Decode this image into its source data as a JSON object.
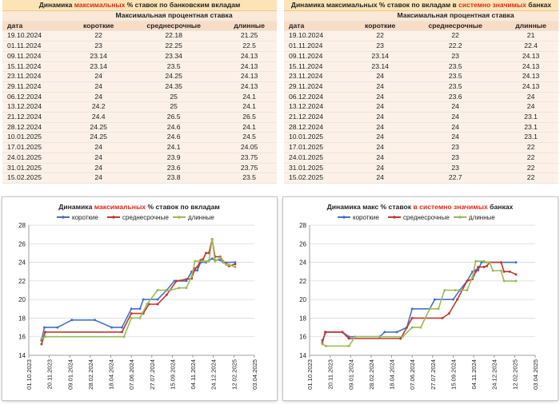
{
  "table_left": {
    "title_prefix": "Динамика ",
    "title_highlight": "максимальных",
    "title_suffix": " % ставок по банковским вкладам",
    "subheader": "Максимальная процентная ставка",
    "columns": [
      "дата",
      "короткие",
      "среднесрочные",
      "длинные"
    ],
    "rows": [
      [
        "19.10.2024",
        "22",
        "22.18",
        "21.25"
      ],
      [
        "01.11.2024",
        "23",
        "22.25",
        "22.5"
      ],
      [
        "09.11.2024",
        "23.14",
        "23.34",
        "24.13"
      ],
      [
        "15.11.2024",
        "23.14",
        "23.5",
        "24.13"
      ],
      [
        "23.11.2024",
        "24",
        "24.25",
        "24.13"
      ],
      [
        "29.11.2024",
        "24",
        "24.35",
        "24.13"
      ],
      [
        "06.12.2024",
        "24",
        "25",
        "24.1"
      ],
      [
        "13.12.2024",
        "24.2",
        "25",
        "24.1"
      ],
      [
        "21.12.2024",
        "24.4",
        "26.5",
        "26.5"
      ],
      [
        "28.12.2024",
        "24.25",
        "24.6",
        "24.1"
      ],
      [
        "10.01.2025",
        "24.25",
        "24.6",
        "24.5"
      ],
      [
        "17.01.2025",
        "24",
        "24.1",
        "24.05"
      ],
      [
        "24.01.2025",
        "24",
        "23.9",
        "23.75"
      ],
      [
        "31.01.2025",
        "24",
        "23.6",
        "23.75"
      ],
      [
        "15.02.2025",
        "24",
        "23.8",
        "23.5"
      ]
    ]
  },
  "table_right": {
    "title_prefix": "Динамика ",
    "title_highlight1": "максимальных",
    "title_middle": " % ставок по вкладам в ",
    "title_highlight2": "системно значимых",
    "title_suffix": " банках",
    "subheader": "Максимальная процентная ставка",
    "columns": [
      "дата",
      "короткие",
      "среднесрочные",
      "длинные"
    ],
    "rows": [
      [
        "19.10.2024",
        "22",
        "22",
        "21"
      ],
      [
        "01.11.2024",
        "23",
        "22.2",
        "22.4"
      ],
      [
        "09.11.2024",
        "23.14",
        "23",
        "24.13"
      ],
      [
        "15.11.2024",
        "23.14",
        "23.5",
        "24.13"
      ],
      [
        "23.11.2024",
        "24",
        "23.5",
        "24.13"
      ],
      [
        "29.11.2024",
        "24",
        "23.5",
        "24.13"
      ],
      [
        "06.12.2024",
        "24",
        "23.6",
        "24"
      ],
      [
        "13.12.2024",
        "24",
        "24",
        "24"
      ],
      [
        "21.12.2024",
        "24",
        "24",
        "23.1"
      ],
      [
        "28.12.2024",
        "24",
        "24",
        "23.1"
      ],
      [
        "10.01.2025",
        "24",
        "24",
        "23.1"
      ],
      [
        "17.01.2025",
        "24",
        "23",
        "22"
      ],
      [
        "24.01.2025",
        "24",
        "23",
        "22"
      ],
      [
        "31.01.2025",
        "24",
        "23",
        "22"
      ],
      [
        "15.02.2025",
        "24",
        "22.7",
        "22"
      ]
    ]
  },
  "chart_data": [
    {
      "type": "line",
      "title_prefix": "Динамика ",
      "title_highlight": "максимальных",
      "title_suffix": " % ставок по вкладам",
      "legend": [
        "короткие",
        "среднесрочные",
        "длинные"
      ],
      "colors": [
        "#4472c4",
        "#c0392b",
        "#9bbb59"
      ],
      "ylim": [
        14,
        28
      ],
      "yticks": [
        "14",
        "16",
        "18",
        "20",
        "22",
        "24",
        "26",
        "28"
      ],
      "xlim": [
        "2023-10-01",
        "2025-04-03"
      ],
      "xticks": [
        "01.10.2023",
        "20.11.2023",
        "09.01.2024",
        "28.02.2024",
        "18.04.2024",
        "07.06.2024",
        "27.07.2024",
        "15.09.2024",
        "04.11.2024",
        "24.12.2024",
        "12.02.2025",
        "03.04.2025"
      ],
      "series": [
        {
          "name": "короткие",
          "points": [
            [
              "2023-11-01",
              15.6
            ],
            [
              "2023-11-08",
              17
            ],
            [
              "2023-12-10",
              17
            ],
            [
              "2024-01-14",
              17.8
            ],
            [
              "2024-03-10",
              17.8
            ],
            [
              "2024-04-20",
              17
            ],
            [
              "2024-05-15",
              17
            ],
            [
              "2024-06-07",
              19
            ],
            [
              "2024-06-28",
              19
            ],
            [
              "2024-07-06",
              20
            ],
            [
              "2024-08-10",
              20
            ],
            [
              "2024-09-01",
              21
            ],
            [
              "2024-09-20",
              22
            ],
            [
              "2024-10-19",
              22
            ],
            [
              "2024-11-01",
              23
            ],
            [
              "2024-11-09",
              23.14
            ],
            [
              "2024-11-15",
              23.14
            ],
            [
              "2024-11-23",
              24
            ],
            [
              "2024-12-06",
              24
            ],
            [
              "2024-12-13",
              24.2
            ],
            [
              "2024-12-21",
              24.4
            ],
            [
              "2024-12-28",
              24.25
            ],
            [
              "2025-01-10",
              24.25
            ],
            [
              "2025-01-17",
              24
            ],
            [
              "2025-02-15",
              24
            ]
          ]
        },
        {
          "name": "среднесрочные",
          "points": [
            [
              "2023-11-01",
              15.2
            ],
            [
              "2023-11-10",
              16.5
            ],
            [
              "2024-05-15",
              16.5
            ],
            [
              "2024-06-07",
              18.5
            ],
            [
              "2024-07-06",
              18.5
            ],
            [
              "2024-07-20",
              19.5
            ],
            [
              "2024-08-10",
              19.5
            ],
            [
              "2024-09-01",
              20.5
            ],
            [
              "2024-09-25",
              22
            ],
            [
              "2024-10-19",
              22.18
            ],
            [
              "2024-11-01",
              22.25
            ],
            [
              "2024-11-09",
              23.34
            ],
            [
              "2024-11-15",
              23.5
            ],
            [
              "2024-11-23",
              24.25
            ],
            [
              "2024-11-29",
              24.35
            ],
            [
              "2024-12-06",
              25
            ],
            [
              "2024-12-13",
              25
            ],
            [
              "2024-12-21",
              26.5
            ],
            [
              "2024-12-28",
              24.6
            ],
            [
              "2025-01-10",
              24.6
            ],
            [
              "2025-01-17",
              24.1
            ],
            [
              "2025-01-24",
              23.9
            ],
            [
              "2025-01-31",
              23.6
            ],
            [
              "2025-02-15",
              23.8
            ]
          ]
        },
        {
          "name": "длинные",
          "points": [
            [
              "2023-11-01",
              15.8
            ],
            [
              "2023-11-10",
              16
            ],
            [
              "2024-05-20",
              16
            ],
            [
              "2024-06-07",
              18
            ],
            [
              "2024-06-28",
              18
            ],
            [
              "2024-07-15",
              19.5
            ],
            [
              "2024-08-10",
              21
            ],
            [
              "2024-09-10",
              21
            ],
            [
              "2024-10-01",
              21.25
            ],
            [
              "2024-10-19",
              21.25
            ],
            [
              "2024-11-01",
              22.5
            ],
            [
              "2024-11-09",
              24.13
            ],
            [
              "2024-11-29",
              24.13
            ],
            [
              "2024-12-06",
              24.1
            ],
            [
              "2024-12-13",
              24.1
            ],
            [
              "2024-12-21",
              26.5
            ],
            [
              "2024-12-28",
              24.1
            ],
            [
              "2025-01-10",
              24.5
            ],
            [
              "2025-01-17",
              24.05
            ],
            [
              "2025-01-24",
              23.75
            ],
            [
              "2025-01-31",
              23.75
            ],
            [
              "2025-02-15",
              23.5
            ]
          ]
        }
      ]
    },
    {
      "type": "line",
      "title_prefix": "Динамика макс % ставок ",
      "title_highlight": "в системно значимых",
      "title_suffix": " банках",
      "legend": [
        "короткие",
        "среднесрочные",
        "длинные"
      ],
      "colors": [
        "#4472c4",
        "#c0392b",
        "#9bbb59"
      ],
      "ylim": [
        14,
        28
      ],
      "yticks": [
        "14",
        "16",
        "18",
        "20",
        "22",
        "24",
        "26",
        "28"
      ],
      "xlim": [
        "2023-10-01",
        "2025-04-03"
      ],
      "xticks": [
        "01.10.2023",
        "20.11.2023",
        "09.01.2024",
        "28.02.2024",
        "18.04.2024",
        "07.06.2024",
        "27.07.2024",
        "15.09.2024",
        "04.11.2024",
        "24.12.2024",
        "12.02.2025",
        "03.04.2025"
      ],
      "series": [
        {
          "name": "короткие",
          "points": [
            [
              "2023-11-01",
              15.6
            ],
            [
              "2023-11-10",
              16.5
            ],
            [
              "2023-12-20",
              16.5
            ],
            [
              "2024-01-05",
              16
            ],
            [
              "2024-03-20",
              16
            ],
            [
              "2024-04-01",
              16.5
            ],
            [
              "2024-05-01",
              16.5
            ],
            [
              "2024-05-25",
              17
            ],
            [
              "2024-06-07",
              19
            ],
            [
              "2024-07-20",
              19
            ],
            [
              "2024-08-01",
              20
            ],
            [
              "2024-09-15",
              20
            ],
            [
              "2024-10-01",
              21
            ],
            [
              "2024-10-19",
              22
            ],
            [
              "2024-11-01",
              23
            ],
            [
              "2024-11-09",
              23.14
            ],
            [
              "2024-11-15",
              23.14
            ],
            [
              "2024-11-23",
              24
            ],
            [
              "2025-02-15",
              24
            ]
          ]
        },
        {
          "name": "среднесрочные",
          "points": [
            [
              "2023-11-01",
              15.3
            ],
            [
              "2023-11-08",
              16.5
            ],
            [
              "2023-12-20",
              16.5
            ],
            [
              "2024-01-05",
              15.8
            ],
            [
              "2024-05-10",
              15.8
            ],
            [
              "2024-06-07",
              18
            ],
            [
              "2024-08-20",
              18
            ],
            [
              "2024-09-05",
              18.5
            ],
            [
              "2024-09-25",
              20
            ],
            [
              "2024-10-19",
              22
            ],
            [
              "2024-11-01",
              22.2
            ],
            [
              "2024-11-09",
              23
            ],
            [
              "2024-11-15",
              23.5
            ],
            [
              "2024-11-29",
              23.5
            ],
            [
              "2024-12-06",
              23.6
            ],
            [
              "2024-12-13",
              24
            ],
            [
              "2025-01-10",
              24
            ],
            [
              "2025-01-17",
              23
            ],
            [
              "2025-01-31",
              23
            ],
            [
              "2025-02-15",
              22.7
            ]
          ]
        },
        {
          "name": "длинные",
          "points": [
            [
              "2023-11-01",
              15.2
            ],
            [
              "2023-11-10",
              15
            ],
            [
              "2024-01-05",
              15
            ],
            [
              "2024-01-20",
              16
            ],
            [
              "2024-05-15",
              16
            ],
            [
              "2024-06-07",
              17
            ],
            [
              "2024-06-28",
              17
            ],
            [
              "2024-07-20",
              19
            ],
            [
              "2024-08-10",
              19
            ],
            [
              "2024-08-25",
              21
            ],
            [
              "2024-09-20",
              21
            ],
            [
              "2024-10-19",
              21
            ],
            [
              "2024-11-01",
              22.4
            ],
            [
              "2024-11-09",
              24.13
            ],
            [
              "2024-11-29",
              24.13
            ],
            [
              "2024-12-06",
              24
            ],
            [
              "2024-12-13",
              24
            ],
            [
              "2024-12-21",
              23.1
            ],
            [
              "2025-01-10",
              23.1
            ],
            [
              "2025-01-17",
              22
            ],
            [
              "2025-02-15",
              22
            ]
          ]
        }
      ]
    }
  ]
}
